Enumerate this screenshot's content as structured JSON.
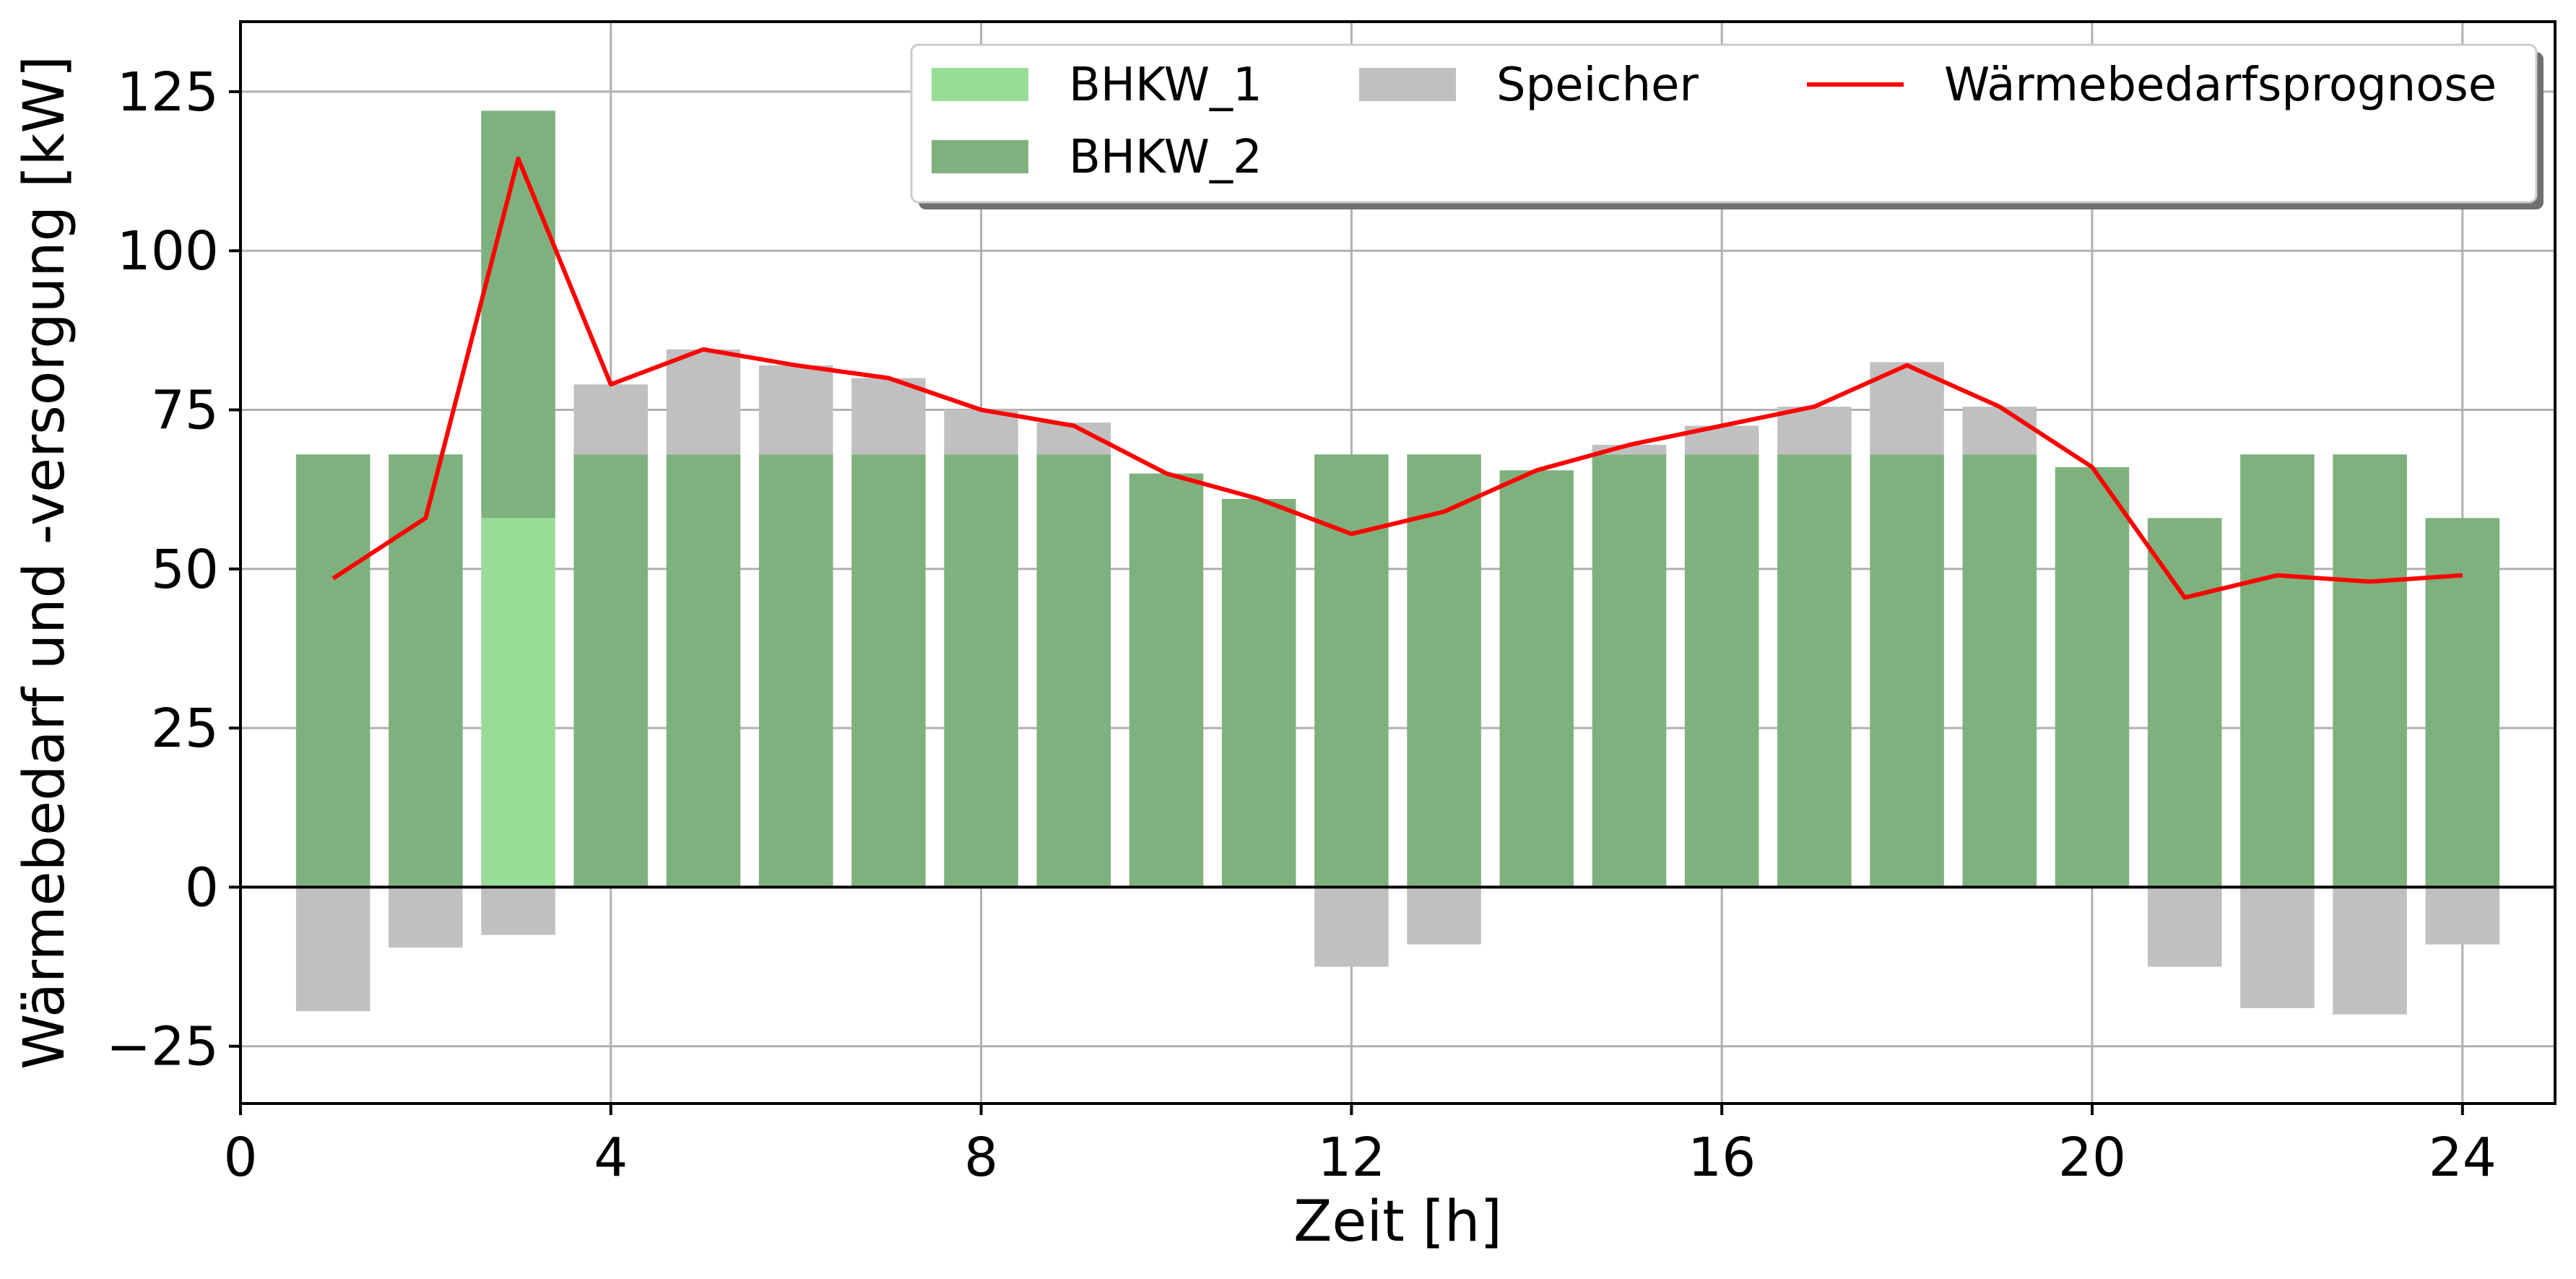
{
  "chart_data": {
    "type": "bar",
    "stacked": true,
    "xlabel": "Zeit [h]",
    "ylabel": "Wärmebedarf und -versorgung [kW]",
    "x": [
      1,
      2,
      3,
      4,
      5,
      6,
      7,
      8,
      9,
      10,
      11,
      12,
      13,
      14,
      15,
      16,
      17,
      18,
      19,
      20,
      21,
      22,
      23,
      24
    ],
    "xlim": [
      0,
      25
    ],
    "ylim": [
      -34,
      136
    ],
    "xticks": [
      0,
      4,
      8,
      12,
      16,
      20,
      24
    ],
    "yticks": [
      -25,
      0,
      25,
      50,
      75,
      100,
      125
    ],
    "grid": true,
    "legend_position": "top-right",
    "legend_columns": 3,
    "series": [
      {
        "name": "BHKW_1",
        "kind": "bar",
        "color": "#98DC98",
        "values": [
          0,
          0,
          58,
          0,
          0,
          0,
          0,
          0,
          0,
          0,
          0,
          0,
          0,
          0,
          0,
          0,
          0,
          0,
          0,
          0,
          0,
          0,
          0,
          0
        ]
      },
      {
        "name": "BHKW_2",
        "kind": "bar",
        "color": "#7FB17F",
        "values": [
          68,
          68,
          64,
          68,
          68,
          68,
          68,
          68,
          68,
          65,
          61,
          68,
          68,
          65.5,
          68,
          68,
          68,
          68,
          68,
          66,
          58,
          68,
          68,
          58
        ]
      },
      {
        "name": "Speicher",
        "kind": "bar",
        "color": "#C0C0C0",
        "values": [
          -19.5,
          -9.5,
          -7.5,
          11,
          16.5,
          14,
          12,
          7,
          5,
          0,
          0,
          -12.5,
          -9,
          0,
          1.5,
          4.5,
          7.5,
          14.5,
          7.5,
          0,
          -12.5,
          -19,
          -20,
          -9
        ]
      },
      {
        "name": "Wärmebedarfsprognose",
        "kind": "line",
        "color": "#FF0000",
        "values": [
          48.5,
          58,
          114.5,
          79,
          84.5,
          82,
          80,
          75,
          72.5,
          65,
          61,
          55.5,
          59,
          65.5,
          69.5,
          72.5,
          75.5,
          82,
          75.5,
          66,
          45.5,
          49,
          48,
          49
        ]
      }
    ]
  }
}
